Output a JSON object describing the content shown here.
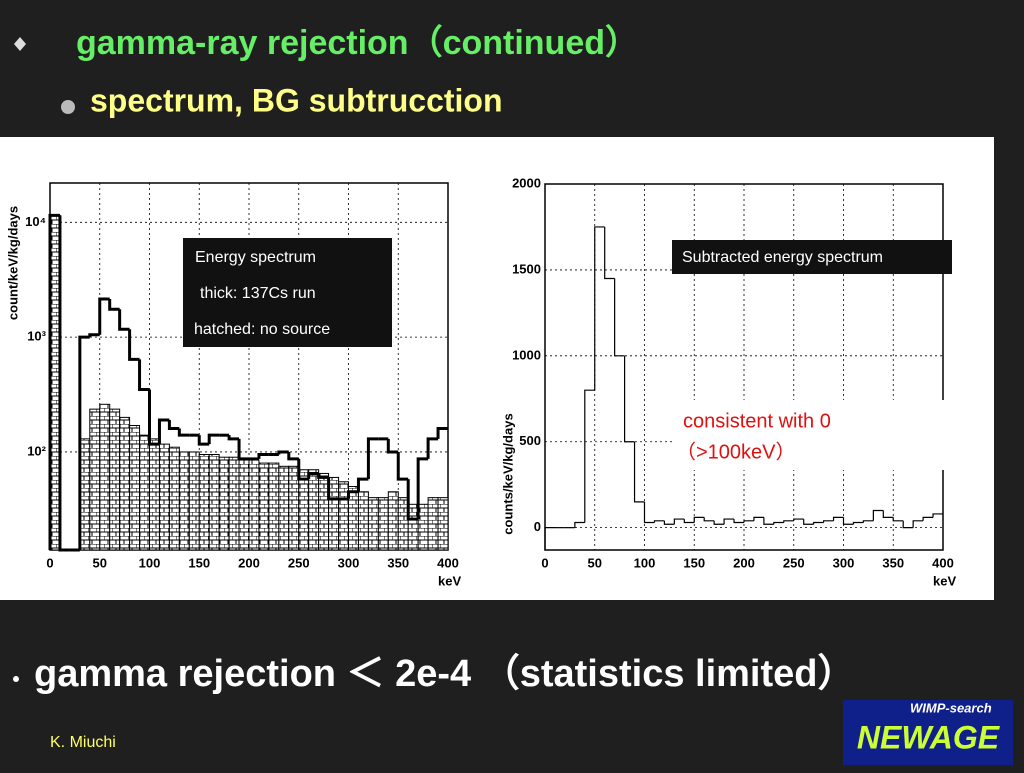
{
  "slide": {
    "title": "gamma-ray rejection（continued）",
    "subtitle": "spectrum, BG subtrucction",
    "bullet": "gamma rejection ＜ 2e-4 （statistics limited）",
    "author": "K. Miuchi",
    "logo_top": "WIMP-search",
    "logo_main": "NEWAGE"
  },
  "chart_data": [
    {
      "type": "histogram",
      "annotation": "Energy spectrum",
      "xlabel": "keV",
      "ylabel": "count/keV/kg/days",
      "log_y": true,
      "grid": true,
      "bins": [
        0,
        10,
        20,
        30,
        40,
        50,
        60,
        70,
        80,
        90,
        100,
        110,
        120,
        130,
        140,
        150,
        160,
        170,
        180,
        190,
        200,
        210,
        220,
        230,
        240,
        250,
        260,
        270,
        280,
        290,
        300,
        310,
        320,
        330,
        340,
        350,
        360,
        370,
        380,
        390,
        400
      ],
      "series": [
        {
          "name": "thick: 137Cs run",
          "style": "thick",
          "color": "#000000",
          "values": [
            11500,
            10,
            10,
            1000,
            1050,
            2150,
            1750,
            1170,
            640,
            350,
            117,
            190,
            160,
            140,
            140,
            117,
            140,
            140,
            130,
            87,
            87,
            95,
            95,
            100,
            87,
            58,
            65,
            60,
            39,
            39,
            45,
            58,
            130,
            130,
            100,
            58,
            26,
            87,
            130,
            160
          ]
        },
        {
          "name": "hatched: no source",
          "style": "hatched",
          "color": "#000000",
          "values": [
            11500,
            10,
            10,
            130,
            236,
            260,
            236,
            200,
            170,
            140,
            130,
            117,
            110,
            100,
            100,
            95,
            95,
            90,
            90,
            85,
            85,
            80,
            80,
            75,
            75,
            70,
            70,
            65,
            60,
            55,
            50,
            45,
            40,
            40,
            45,
            40,
            35,
            35,
            40,
            40
          ]
        }
      ],
      "xlim": [
        0,
        400
      ],
      "xticks": [
        0,
        50,
        100,
        150,
        200,
        250,
        300,
        350,
        400
      ],
      "ylim": [
        14,
        22000
      ],
      "yticks": [
        {
          "value": 100,
          "label": "10²"
        },
        {
          "value": 1000,
          "label": "10³"
        },
        {
          "value": 10000,
          "label": "10⁴"
        }
      ]
    },
    {
      "type": "histogram",
      "title": "Subtracted energy spectrum",
      "annotations": [
        "consistent with 0",
        "（>100keV）"
      ],
      "xlabel": "keV",
      "ylabel": "counts/keV/kg/days",
      "log_y": false,
      "grid": true,
      "bins": [
        0,
        10,
        20,
        30,
        40,
        50,
        60,
        70,
        80,
        90,
        100,
        110,
        120,
        130,
        140,
        150,
        160,
        170,
        180,
        190,
        200,
        210,
        220,
        230,
        240,
        250,
        260,
        270,
        280,
        290,
        300,
        310,
        320,
        330,
        340,
        350,
        360,
        370,
        380,
        390,
        400
      ],
      "series": [
        {
          "name": "subtracted",
          "style": "step",
          "color": "#000000",
          "values": [
            0,
            0,
            0,
            30,
            800,
            1750,
            1450,
            1000,
            500,
            150,
            30,
            40,
            20,
            50,
            30,
            60,
            40,
            20,
            50,
            30,
            40,
            60,
            20,
            30,
            40,
            50,
            20,
            30,
            40,
            60,
            20,
            30,
            40,
            100,
            60,
            40,
            0,
            40,
            60,
            80
          ]
        }
      ],
      "xlim": [
        0,
        400
      ],
      "xticks": [
        0,
        50,
        100,
        150,
        200,
        250,
        300,
        350,
        400
      ],
      "ylim": [
        -130,
        2000
      ],
      "yticks": [
        0,
        500,
        1000,
        1500,
        2000
      ]
    }
  ]
}
